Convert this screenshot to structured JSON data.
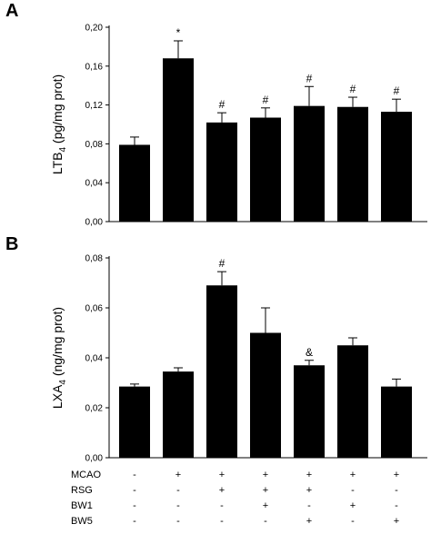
{
  "chart_data": [
    {
      "type": "bar",
      "panel_label": "A",
      "ylabel": "LTB",
      "ylabel_sub": "4",
      "ylabel_unit": " (pg/mg prot)",
      "ylim": [
        0,
        0.2
      ],
      "yticks": [
        0,
        0.04,
        0.08,
        0.12,
        0.16,
        0.2
      ],
      "ytick_labels": [
        "0,00",
        "0,04",
        "0,08",
        "0,12",
        "0,16",
        "0,20"
      ],
      "values": [
        0.079,
        0.168,
        0.102,
        0.107,
        0.119,
        0.118,
        0.113
      ],
      "errors": [
        0.008,
        0.018,
        0.01,
        0.01,
        0.02,
        0.01,
        0.013
      ],
      "annotations": [
        "",
        "*",
        "#",
        "#",
        "#",
        "#",
        "#"
      ],
      "grid": false,
      "bar_color": "#000000"
    },
    {
      "type": "bar",
      "panel_label": "B",
      "ylabel": "LXA",
      "ylabel_sub": "4",
      "ylabel_unit": " (ng/mg prot)",
      "ylim": [
        0,
        0.08
      ],
      "yticks": [
        0,
        0.02,
        0.04,
        0.06,
        0.08
      ],
      "ytick_labels": [
        "0,00",
        "0,02",
        "0,04",
        "0,06",
        "0,08"
      ],
      "values": [
        0.0285,
        0.0345,
        0.069,
        0.05,
        0.037,
        0.045,
        0.0285
      ],
      "errors": [
        0.001,
        0.0015,
        0.0055,
        0.01,
        0.002,
        0.003,
        0.003
      ],
      "annotations": [
        "",
        "",
        "#",
        "",
        "&",
        "",
        ""
      ],
      "grid": false,
      "bar_color": "#000000"
    }
  ],
  "conditions": {
    "rows": [
      {
        "label": "MCAO",
        "signs": [
          "-",
          "+",
          "+",
          "+",
          "+",
          "+",
          "+"
        ]
      },
      {
        "label": "RSG",
        "signs": [
          "-",
          "-",
          "+",
          "+",
          "+",
          "-",
          "-"
        ]
      },
      {
        "label": "BW1",
        "signs": [
          "-",
          "-",
          "-",
          "+",
          "-",
          "+",
          "-"
        ]
      },
      {
        "label": "BW5",
        "signs": [
          "-",
          "-",
          "-",
          "-",
          "+",
          "-",
          "+"
        ]
      }
    ]
  }
}
